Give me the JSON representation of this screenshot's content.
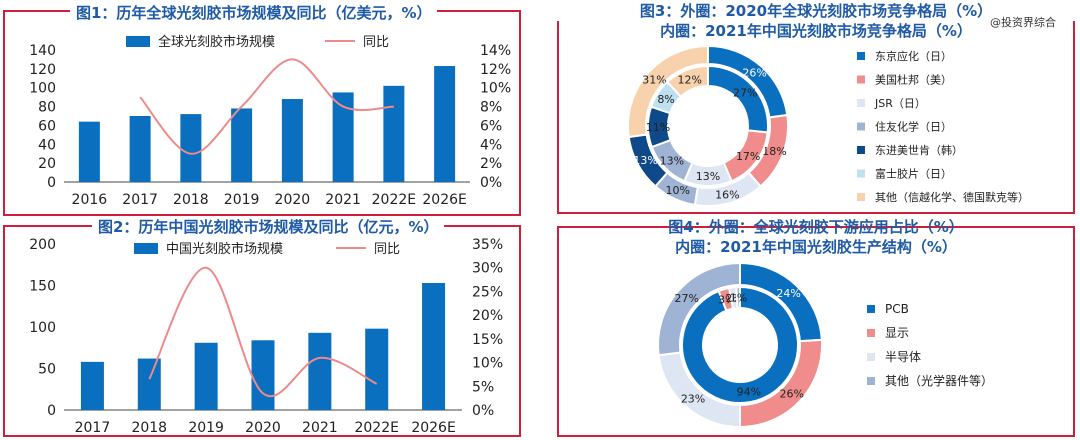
{
  "watermark": "@投资界综合",
  "colors": {
    "bar": "#0a6fbf",
    "line": "#ee8a8a",
    "frame": "#d01f3c",
    "title": "#1f5aa6"
  },
  "chart_data": [
    {
      "id": "fig1",
      "type": "bar",
      "title": "图1：历年全球光刻胶市场规模及同比（亿美元，%）",
      "categories": [
        "2016",
        "2017",
        "2018",
        "2019",
        "2020",
        "2021",
        "2022E",
        "2026E"
      ],
      "series": [
        {
          "name": "全球光刻胶市场规模",
          "type": "bar",
          "values": [
            64,
            70,
            72,
            78,
            88,
            95,
            102,
            123
          ]
        },
        {
          "name": "同比",
          "type": "line",
          "axis": "right",
          "values": [
            null,
            9.0,
            3.0,
            8.0,
            13.0,
            8.0,
            8.0,
            null
          ]
        }
      ],
      "ylim": [
        0,
        140
      ],
      "yticks": [
        "0",
        "20",
        "40",
        "60",
        "80",
        "100",
        "120",
        "140"
      ],
      "y2lim": [
        0,
        14
      ],
      "y2ticks": [
        "0%",
        "2%",
        "4%",
        "6%",
        "8%",
        "10%",
        "12%",
        "14%"
      ]
    },
    {
      "id": "fig2",
      "type": "bar",
      "title": "图2：历年中国光刻胶市场规模及同比（亿元，%）",
      "categories": [
        "2017",
        "2018",
        "2019",
        "2020",
        "2021",
        "2022E",
        "2026E"
      ],
      "series": [
        {
          "name": "中国光刻胶市场规模",
          "type": "bar",
          "values": [
            58,
            62,
            81,
            84,
            93,
            98,
            153
          ]
        },
        {
          "name": "同比",
          "type": "line",
          "axis": "right",
          "values": [
            null,
            6.5,
            30.0,
            3.5,
            11.0,
            5.5,
            null
          ]
        }
      ],
      "ylim": [
        0,
        200
      ],
      "yticks": [
        "0",
        "50",
        "100",
        "150",
        "200"
      ],
      "y2lim": [
        0,
        35
      ],
      "y2ticks": [
        "0%",
        "5%",
        "10%",
        "15%",
        "20%",
        "25%",
        "30%",
        "35%"
      ]
    },
    {
      "id": "fig3",
      "type": "pie",
      "title_line1": "图3：外圈：2020年全球光刻胶市场竞争格局（%）",
      "title_line2": "内圈：2021年中国光刻胶市场竞争格局（%）",
      "legend": [
        "东京应化（日）",
        "美国杜邦（美）",
        "JSR（日）",
        "住友化学（日）",
        "东进美世肯（韩）",
        "富士胶片（日）",
        "其他（信越化学、德国默克等）"
      ],
      "legend_colors": [
        "#0a6fbf",
        "#f08c8c",
        "#dde6f2",
        "#9fb4d4",
        "#0e4a8a",
        "#bfe0ef",
        "#f8d2ad"
      ],
      "outer_label": "2020年全球",
      "inner_label": "2021年中国",
      "outer": [
        26,
        18,
        16,
        10,
        13,
        0,
        31
      ],
      "inner": [
        27,
        17,
        13,
        13,
        11,
        8,
        12
      ],
      "outer_labels": [
        "26%",
        "18%",
        "16%",
        "10%",
        "13%",
        "",
        "31%"
      ],
      "inner_labels": [
        "27%",
        "17%",
        "13%",
        "13%",
        "11%",
        "8%",
        "12%"
      ]
    },
    {
      "id": "fig4",
      "type": "pie",
      "title_line1": "图4：外圈：全球光刻胶下游应用占比（%）",
      "title_line2": "内圈：2021年中国光刻胶生产结构（%）",
      "legend": [
        "PCB",
        "显示",
        "半导体",
        "其他（光学器件等）"
      ],
      "legend_colors": [
        "#0a6fbf",
        "#f08c8c",
        "#dde6f2",
        "#9fb4d4"
      ],
      "outer_label": "全球下游应用",
      "inner_label": "2021年中国生产",
      "outer": [
        24,
        26,
        23,
        27
      ],
      "inner": [
        94,
        3,
        2,
        1
      ],
      "outer_labels": [
        "24%",
        "26%",
        "23%",
        "27%"
      ],
      "inner_labels": [
        "94%",
        "3%",
        "2%",
        "1%"
      ]
    }
  ]
}
